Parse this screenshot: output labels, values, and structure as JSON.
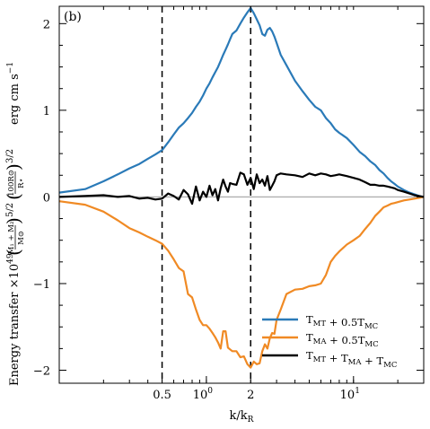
{
  "chart_data": {
    "type": "line",
    "panel_label": "(b)",
    "xlabel": "k/k_R",
    "xlabel_parts": {
      "base": "k/k",
      "sub": "R"
    },
    "ylabel": "Energy transfer ×10^49 (M1 + M2 / M⊙)^5/2 (100R⊙ / R*)^3/2 erg cm s^-1",
    "ylabel_parts": {
      "lead": "Energy transfer ×10",
      "exp": "49",
      "f1_num": "M₁ + M₂",
      "f1_den": "M⊙",
      "f1_pow": "5/2",
      "f2_num": "100R⊙",
      "f2_den": "R⋆",
      "f2_pow": "3/2",
      "units": "erg cm s",
      "units_exp": "−1"
    },
    "x_scale": "log",
    "xlim": [
      0.1,
      30
    ],
    "ylim": [
      -2.15,
      2.2
    ],
    "grid": false,
    "legend_position": "lower-right",
    "x_ticks": [
      {
        "value": 0.5,
        "label": "0.5"
      },
      {
        "value": 1,
        "label": "10",
        "sup": "0"
      },
      {
        "value": 2,
        "label": "2"
      },
      {
        "value": 10,
        "label": "10",
        "sup": "1"
      }
    ],
    "y_ticks": [
      {
        "value": -2,
        "label": "−2"
      },
      {
        "value": -1,
        "label": "−1"
      },
      {
        "value": 0,
        "label": "0"
      },
      {
        "value": 1,
        "label": "1"
      },
      {
        "value": 2,
        "label": "2"
      }
    ],
    "vertical_lines": [
      0.5,
      2
    ],
    "zero_line_color": "#b0b0b0",
    "series": [
      {
        "name": "T_MT + 0.5T_MC",
        "name_parts": [
          [
            "T",
            ""
          ],
          [
            "MT",
            "sub"
          ],
          [
            " + 0.5T",
            ""
          ],
          [
            "MC",
            "sub"
          ]
        ],
        "color": "#2a7ab8",
        "x": [
          0.1,
          0.15,
          0.2,
          0.25,
          0.3,
          0.35,
          0.4,
          0.45,
          0.5,
          0.55,
          0.6,
          0.65,
          0.7,
          0.75,
          0.8,
          0.85,
          0.9,
          0.95,
          1.0,
          1.05,
          1.1,
          1.15,
          1.2,
          1.25,
          1.3,
          1.35,
          1.4,
          1.45,
          1.5,
          1.6,
          1.7,
          1.8,
          1.9,
          2.0,
          2.1,
          2.2,
          2.3,
          2.4,
          2.5,
          2.6,
          2.7,
          2.8,
          2.9,
          3.0,
          3.2,
          3.5,
          4.0,
          4.5,
          5.0,
          5.5,
          6.0,
          6.5,
          7.0,
          7.5,
          8.0,
          9.0,
          10.0,
          11,
          12,
          13,
          14,
          15,
          16,
          17,
          18,
          19,
          20,
          22,
          24,
          26,
          28,
          30
        ],
        "y": [
          0.05,
          0.09,
          0.18,
          0.26,
          0.33,
          0.38,
          0.44,
          0.49,
          0.54,
          0.63,
          0.72,
          0.8,
          0.85,
          0.91,
          0.97,
          1.04,
          1.1,
          1.17,
          1.25,
          1.31,
          1.38,
          1.44,
          1.5,
          1.57,
          1.64,
          1.7,
          1.76,
          1.82,
          1.88,
          1.92,
          2.0,
          2.07,
          2.13,
          2.18,
          2.12,
          2.05,
          1.98,
          1.88,
          1.86,
          1.93,
          1.95,
          1.91,
          1.85,
          1.78,
          1.64,
          1.52,
          1.34,
          1.22,
          1.12,
          1.04,
          1.0,
          0.91,
          0.85,
          0.78,
          0.74,
          0.68,
          0.6,
          0.52,
          0.47,
          0.41,
          0.37,
          0.31,
          0.27,
          0.22,
          0.18,
          0.15,
          0.12,
          0.08,
          0.05,
          0.03,
          0.01,
          0.0
        ]
      },
      {
        "name": "T_MA + 0.5T_MC",
        "name_parts": [
          [
            "T",
            ""
          ],
          [
            "MA",
            "sub"
          ],
          [
            " + 0.5T",
            ""
          ],
          [
            "MC",
            "sub"
          ]
        ],
        "color": "#f08a24",
        "x": [
          0.1,
          0.15,
          0.2,
          0.25,
          0.3,
          0.35,
          0.4,
          0.45,
          0.5,
          0.55,
          0.6,
          0.65,
          0.7,
          0.75,
          0.8,
          0.85,
          0.9,
          0.95,
          1.0,
          1.05,
          1.1,
          1.15,
          1.2,
          1.25,
          1.3,
          1.35,
          1.4,
          1.45,
          1.5,
          1.6,
          1.7,
          1.8,
          1.9,
          2.0,
          2.1,
          2.2,
          2.3,
          2.4,
          2.5,
          2.6,
          2.7,
          2.8,
          2.9,
          3.0,
          3.2,
          3.5,
          4.0,
          4.5,
          5.0,
          5.5,
          6.0,
          6.5,
          7.0,
          7.5,
          8.0,
          9.0,
          10.0,
          11,
          12,
          13,
          14,
          15,
          16,
          17,
          18,
          19,
          20,
          22,
          24,
          26,
          28,
          30
        ],
        "y": [
          -0.05,
          -0.09,
          -0.17,
          -0.27,
          -0.36,
          -0.41,
          -0.46,
          -0.5,
          -0.54,
          -0.62,
          -0.72,
          -0.82,
          -0.86,
          -1.12,
          -1.16,
          -1.3,
          -1.42,
          -1.48,
          -1.48,
          -1.52,
          -1.57,
          -1.62,
          -1.68,
          -1.75,
          -1.55,
          -1.55,
          -1.74,
          -1.76,
          -1.78,
          -1.78,
          -1.85,
          -1.84,
          -1.93,
          -1.97,
          -1.9,
          -1.93,
          -1.92,
          -1.78,
          -1.7,
          -1.75,
          -1.63,
          -1.57,
          -1.58,
          -1.42,
          -1.3,
          -1.12,
          -1.07,
          -1.06,
          -1.03,
          -1.02,
          -1.0,
          -0.9,
          -0.75,
          -0.68,
          -0.63,
          -0.55,
          -0.5,
          -0.45,
          -0.37,
          -0.3,
          -0.22,
          -0.17,
          -0.12,
          -0.1,
          -0.08,
          -0.07,
          -0.06,
          -0.04,
          -0.03,
          -0.02,
          -0.01,
          0.0
        ]
      },
      {
        "name": "T_MT + T_MA + T_MC",
        "name_parts": [
          [
            "T",
            ""
          ],
          [
            "MT",
            "sub"
          ],
          [
            " + T",
            ""
          ],
          [
            "MA",
            "sub"
          ],
          [
            " + T",
            ""
          ],
          [
            "MC",
            "sub"
          ]
        ],
        "color": "#000000",
        "x": [
          0.1,
          0.15,
          0.2,
          0.25,
          0.3,
          0.35,
          0.4,
          0.45,
          0.5,
          0.55,
          0.6,
          0.65,
          0.7,
          0.75,
          0.8,
          0.85,
          0.9,
          0.95,
          1.0,
          1.05,
          1.1,
          1.15,
          1.2,
          1.25,
          1.3,
          1.35,
          1.4,
          1.45,
          1.5,
          1.6,
          1.7,
          1.8,
          1.9,
          2.0,
          2.1,
          2.2,
          2.3,
          2.4,
          2.5,
          2.6,
          2.7,
          2.8,
          2.9,
          3.0,
          3.2,
          3.5,
          4.0,
          4.5,
          5.0,
          5.5,
          6.0,
          6.5,
          7.0,
          7.5,
          8.0,
          9.0,
          10.0,
          11,
          12,
          13,
          14,
          15,
          16,
          17,
          18,
          19,
          20,
          22,
          24,
          26,
          28,
          30
        ],
        "y": [
          0.0,
          0.01,
          0.02,
          0.0,
          0.01,
          -0.02,
          -0.01,
          -0.03,
          -0.02,
          0.04,
          0.01,
          -0.03,
          0.08,
          0.03,
          -0.08,
          0.12,
          -0.04,
          0.06,
          0.0,
          0.13,
          0.02,
          0.09,
          -0.04,
          0.1,
          0.2,
          0.12,
          0.06,
          0.16,
          0.15,
          0.14,
          0.28,
          0.26,
          0.14,
          0.22,
          0.09,
          0.26,
          0.16,
          0.2,
          0.13,
          0.24,
          0.08,
          0.13,
          0.18,
          0.25,
          0.27,
          0.26,
          0.25,
          0.23,
          0.27,
          0.25,
          0.27,
          0.26,
          0.24,
          0.25,
          0.26,
          0.24,
          0.22,
          0.2,
          0.17,
          0.14,
          0.14,
          0.13,
          0.13,
          0.12,
          0.11,
          0.1,
          0.08,
          0.06,
          0.04,
          0.02,
          0.01,
          0.0
        ]
      }
    ]
  }
}
